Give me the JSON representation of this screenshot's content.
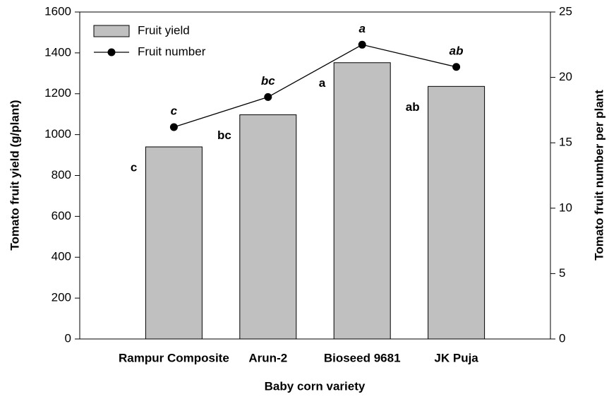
{
  "chart_data": {
    "type": "bar",
    "x_label": "Baby corn variety",
    "y_label": "Tomato fruit yield (g/plant)",
    "y2_label": "Tomato fruit number per plant",
    "categories": [
      "Rampur Composite",
      "Arun-2",
      "Bioseed 9681",
      "JK Puja"
    ],
    "series": [
      {
        "name": "Fruit yield",
        "type": "bar",
        "color": "#c0c0c0",
        "values": [
          940,
          1097,
          1352,
          1236
        ],
        "letters": [
          "c",
          "bc",
          "a",
          "ab"
        ]
      },
      {
        "name": "Fruit number",
        "type": "line",
        "axis": "y2",
        "color": "#000000",
        "values": [
          16.2,
          18.5,
          22.5,
          20.8
        ],
        "letters": [
          "c",
          "bc",
          "a",
          "ab"
        ]
      }
    ],
    "ylim": [
      0,
      1600
    ],
    "yticks": [
      0,
      200,
      400,
      600,
      800,
      1000,
      1200,
      1400,
      1600
    ],
    "y2lim": [
      0,
      25
    ],
    "y2ticks": [
      0,
      5,
      10,
      15,
      20,
      25
    ],
    "legend": "upper left"
  }
}
